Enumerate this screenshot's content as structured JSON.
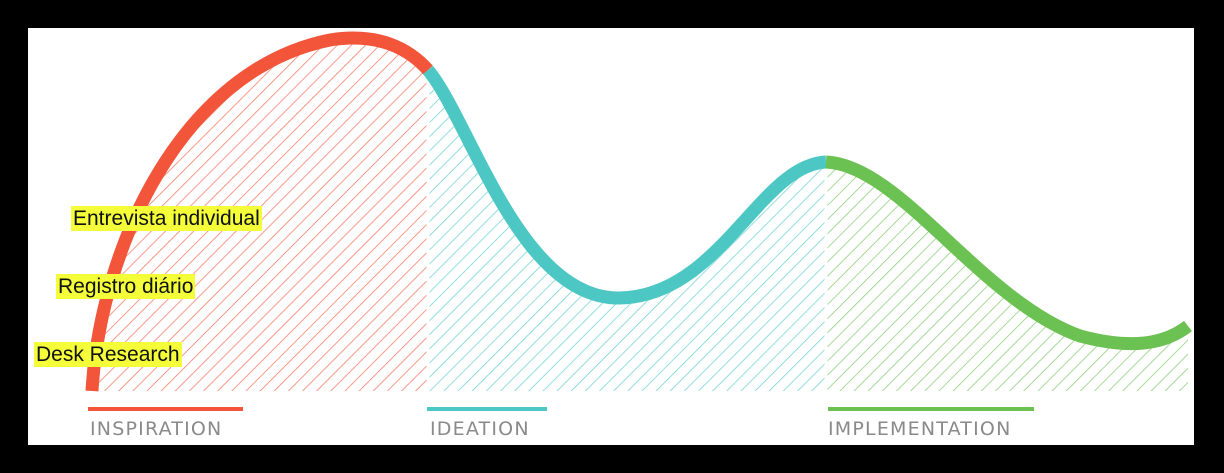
{
  "phases": [
    {
      "label": "INSPIRATION",
      "color": "#f2553a"
    },
    {
      "label": "IDEATION",
      "color": "#4cc7c4"
    },
    {
      "label": "IMPLEMENTATION",
      "color": "#6cc153"
    }
  ],
  "annotations": {
    "item1": "Entrevista individual",
    "item2": "Registro diário",
    "item3": "Desk Research"
  },
  "colors": {
    "annotation_highlight": "#f4ff3a",
    "label_gray": "#8a8a8a"
  }
}
